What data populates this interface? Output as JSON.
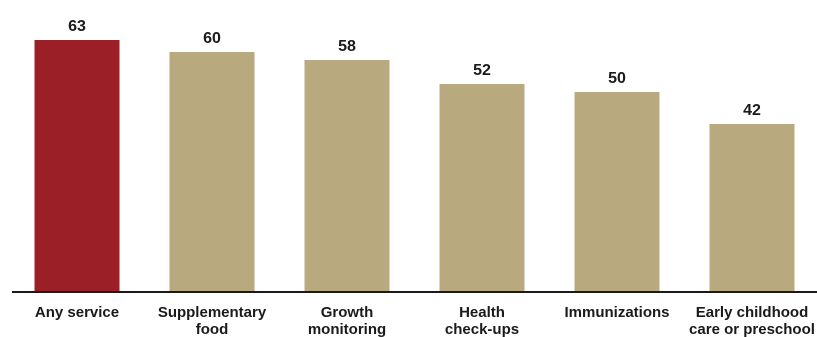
{
  "chart_data": {
    "type": "bar",
    "categories": [
      [
        "Any service"
      ],
      [
        "Supplementary",
        "food"
      ],
      [
        "Growth",
        "monitoring"
      ],
      [
        "Health",
        "check-ups"
      ],
      [
        "Immunizations"
      ],
      [
        "Early childhood",
        "care or preschool"
      ]
    ],
    "values": [
      63,
      60,
      58,
      52,
      50,
      42
    ],
    "value_labels": [
      "63",
      "60",
      "58",
      "52",
      "50",
      "42"
    ],
    "colors": [
      "#9b1f26",
      "#b8a97e",
      "#b8a97e",
      "#b8a97e",
      "#b8a97e",
      "#b8a97e"
    ],
    "ylim": [
      0,
      68
    ],
    "grid": false,
    "legend": "none"
  }
}
